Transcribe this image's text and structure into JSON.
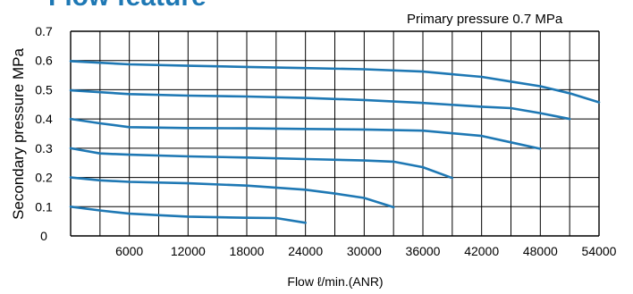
{
  "colors": {
    "title": "#1E78B4",
    "series": "#1E78B4",
    "grid": "#000000"
  },
  "chart_data": {
    "type": "line",
    "title": "Flow feature",
    "annotation": "Primary pressure 0.7 MPa",
    "xlabel": "Flow ℓ/min.(ANR)",
    "ylabel": "Secondary pressure MPa",
    "xlim": [
      0,
      54000
    ],
    "ylim": [
      0,
      0.7
    ],
    "grid": true,
    "x_ticks": [
      "6000",
      "12000",
      "18000",
      "24000",
      "30000",
      "36000",
      "42000",
      "48000",
      "54000"
    ],
    "y_ticks": [
      "0",
      "0.1",
      "0.2",
      "0.3",
      "0.4",
      "0.5",
      "0.6",
      "0.7"
    ],
    "series": [
      {
        "points": [
          [
            0,
            0.1
          ],
          [
            3000,
            0.087
          ],
          [
            6000,
            0.076
          ],
          [
            9000,
            0.071
          ],
          [
            12000,
            0.066
          ],
          [
            15000,
            0.064
          ],
          [
            18000,
            0.062
          ],
          [
            21000,
            0.061
          ],
          [
            24000,
            0.045
          ]
        ]
      },
      {
        "points": [
          [
            0,
            0.2
          ],
          [
            3000,
            0.19
          ],
          [
            6000,
            0.185
          ],
          [
            12000,
            0.18
          ],
          [
            18000,
            0.172
          ],
          [
            24000,
            0.158
          ],
          [
            27000,
            0.145
          ],
          [
            30000,
            0.13
          ],
          [
            33000,
            0.098
          ]
        ]
      },
      {
        "points": [
          [
            0,
            0.3
          ],
          [
            3000,
            0.282
          ],
          [
            6000,
            0.278
          ],
          [
            12000,
            0.272
          ],
          [
            18000,
            0.268
          ],
          [
            24000,
            0.263
          ],
          [
            30000,
            0.258
          ],
          [
            33000,
            0.254
          ],
          [
            36000,
            0.235
          ],
          [
            39000,
            0.198
          ]
        ]
      },
      {
        "points": [
          [
            0,
            0.4
          ],
          [
            3000,
            0.385
          ],
          [
            6000,
            0.372
          ],
          [
            12000,
            0.369
          ],
          [
            18000,
            0.368
          ],
          [
            24000,
            0.366
          ],
          [
            30000,
            0.364
          ],
          [
            36000,
            0.36
          ],
          [
            42000,
            0.342
          ],
          [
            45000,
            0.32
          ],
          [
            48000,
            0.298
          ]
        ]
      },
      {
        "points": [
          [
            0,
            0.498
          ],
          [
            6000,
            0.485
          ],
          [
            12000,
            0.48
          ],
          [
            18000,
            0.477
          ],
          [
            24000,
            0.472
          ],
          [
            30000,
            0.465
          ],
          [
            36000,
            0.455
          ],
          [
            42000,
            0.442
          ],
          [
            45000,
            0.437
          ],
          [
            48000,
            0.42
          ],
          [
            51000,
            0.4
          ]
        ]
      },
      {
        "points": [
          [
            0,
            0.598
          ],
          [
            6000,
            0.587
          ],
          [
            12000,
            0.582
          ],
          [
            18000,
            0.578
          ],
          [
            24000,
            0.574
          ],
          [
            30000,
            0.57
          ],
          [
            36000,
            0.562
          ],
          [
            39000,
            0.553
          ],
          [
            42000,
            0.544
          ],
          [
            45000,
            0.528
          ],
          [
            48000,
            0.512
          ],
          [
            51000,
            0.488
          ],
          [
            54000,
            0.457
          ]
        ]
      }
    ]
  }
}
